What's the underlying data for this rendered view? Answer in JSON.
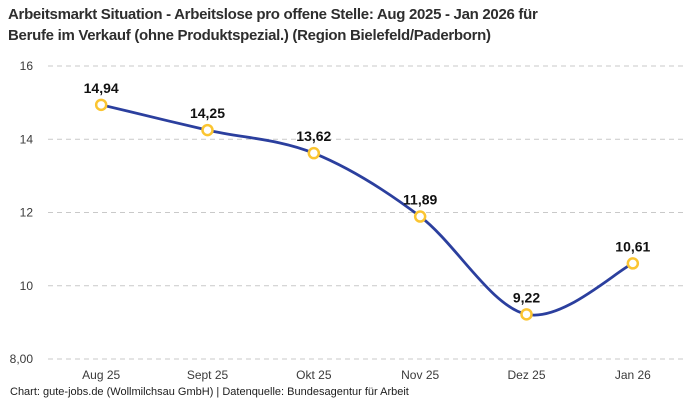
{
  "header": {
    "title_line1": "Arbeitsmarkt Situation - Arbeitslose pro offene Stelle: Aug 2025 - Jan 2026 für",
    "title_line2": "Berufe im Verkauf (ohne Produktspezial.) (Region Bielefeld/Paderborn)"
  },
  "footer": {
    "credit": "Chart: gute-jobs.de (Wollmilchsau GmbH) | Datenquelle: Bundesagentur für Arbeit"
  },
  "chart_data": {
    "type": "line",
    "title": "Arbeitsmarkt Situation - Arbeitslose pro offene Stelle: Aug 2025 - Jan 2026 für Berufe im Verkauf (ohne Produktspezial.) (Region Bielefeld/Paderborn)",
    "categories": [
      "Aug 25",
      "Sept 25",
      "Okt 25",
      "Nov 25",
      "Dez 25",
      "Jan 26"
    ],
    "values": [
      14.94,
      14.25,
      13.62,
      11.89,
      9.22,
      10.61
    ],
    "value_labels": [
      "14,94",
      "14,25",
      "13,62",
      "11,89",
      "9,22",
      "10,61"
    ],
    "ylim": [
      8,
      16
    ],
    "y_ticks": [
      8,
      10,
      12,
      14,
      16
    ],
    "y_tick_labels": [
      "8,00",
      "10",
      "12",
      "14",
      "16"
    ],
    "xlabel": "",
    "ylabel": "",
    "legend": "none",
    "grid": "horizontal-dashed",
    "line_smooth": true,
    "colors": {
      "line": "#2b3f9e",
      "marker_stroke": "#fbc531",
      "marker_fill": "#ffffff",
      "grid": "#c9c9c9",
      "tick_text": "#3a3a3a",
      "value_label_text": "#111111",
      "title_text": "#2e2e2e",
      "background": "#ffffff"
    }
  }
}
